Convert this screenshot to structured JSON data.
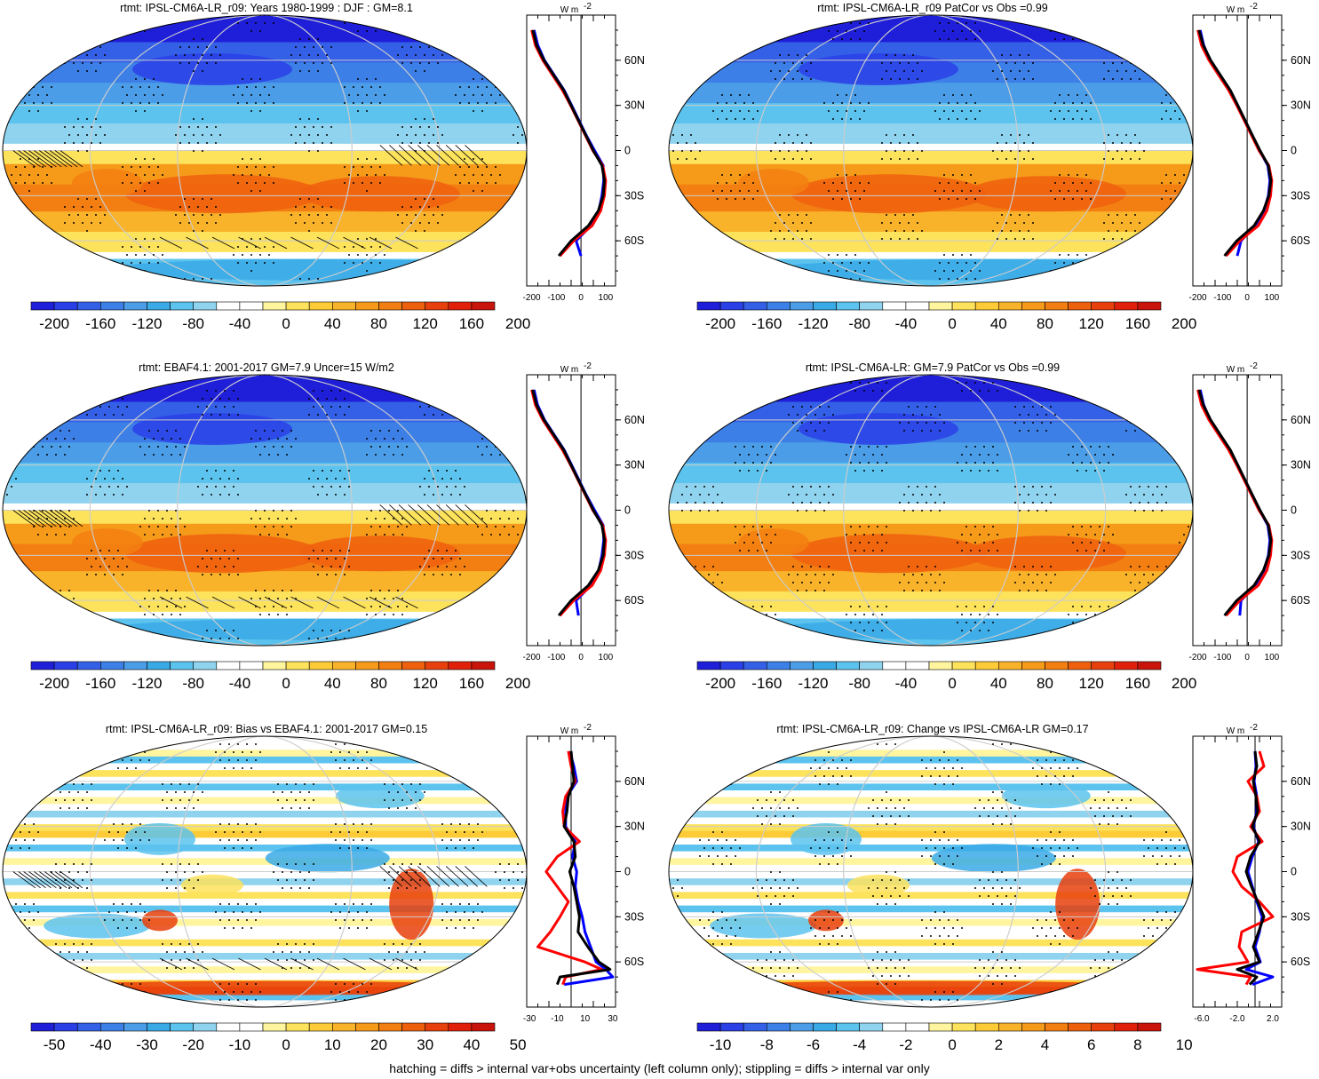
{
  "footnote": "hatching = diffs > internal var+obs uncertainty (left column only); stippling = diffs > internal var only",
  "profile_unit": "W m",
  "profile_unit_exp": "-2",
  "lat_labels": [
    "60N",
    "30N",
    "0",
    "30S",
    "60S"
  ],
  "palette": [
    "#1f1fd9",
    "#2a3fe6",
    "#3460e8",
    "#3c7fe6",
    "#4c9de8",
    "#3aaae6",
    "#5cc3ee",
    "#8fd3ef",
    "#ffffff",
    "#ffffff",
    "#fff59e",
    "#fde25c",
    "#fccb37",
    "#f9b32a",
    "#f69a1a",
    "#f37f12",
    "#ee600e",
    "#e8400c",
    "#e0200a",
    "#c8140a"
  ],
  "colors": {
    "model": "#000000",
    "obs": "#ff0000",
    "other": "#0000ff"
  },
  "chart_data": [
    {
      "type": "heatmap",
      "title": "rtmt: IPSL-CM6A-LR_r09: Years 1980-1999 : DJF : GM=8.1",
      "colorbar_ticks": [
        "-200",
        "-160",
        "-120",
        "-80",
        "-40",
        "0",
        "40",
        "80",
        "120",
        "160",
        "200"
      ],
      "profile_ticks": [
        "-200",
        "-100",
        "0",
        "100"
      ],
      "profile_xlim": [
        -220,
        140
      ],
      "profile_zero": 0,
      "zonal_mean": {
        "lat": [
          80,
          70,
          60,
          50,
          40,
          30,
          20,
          10,
          0,
          -10,
          -20,
          -30,
          -40,
          -50,
          -60,
          -70
        ],
        "model": [
          -195,
          -180,
          -150,
          -110,
          -70,
          -40,
          -10,
          20,
          50,
          85,
          95,
          90,
          70,
          30,
          -40,
          -90
        ],
        "obs": [
          -200,
          -185,
          -155,
          -115,
          -75,
          -42,
          -12,
          18,
          48,
          88,
          100,
          95,
          80,
          45,
          -30,
          -85
        ],
        "other": [
          -190,
          -175,
          -148,
          -108,
          -68,
          -38,
          -8,
          22,
          55,
          90,
          92,
          85,
          72,
          40,
          -20,
          0
        ]
      },
      "hatching": true,
      "stippling": true
    },
    {
      "type": "heatmap",
      "title": "rtmt: IPSL-CM6A-LR_r09 PatCor vs Obs =0.99",
      "colorbar_ticks": [
        "-200",
        "-160",
        "-120",
        "-80",
        "-40",
        "0",
        "40",
        "80",
        "120",
        "160",
        "200"
      ],
      "profile_ticks": [
        "-200",
        "-100",
        "0",
        "100"
      ],
      "profile_xlim": [
        -220,
        140
      ],
      "profile_zero": 0,
      "zonal_mean": {
        "lat": [
          80,
          70,
          60,
          50,
          40,
          30,
          20,
          10,
          0,
          -10,
          -20,
          -30,
          -40,
          -50,
          -60,
          -70
        ],
        "model": [
          -195,
          -178,
          -148,
          -108,
          -68,
          -38,
          -8,
          22,
          52,
          86,
          96,
          88,
          66,
          28,
          -42,
          -92
        ],
        "obs": [
          -200,
          -185,
          -155,
          -115,
          -75,
          -42,
          -12,
          18,
          48,
          88,
          100,
          95,
          80,
          45,
          -30,
          -85
        ],
        "other": [
          -190,
          -176,
          -150,
          -110,
          -70,
          -40,
          -10,
          20,
          50,
          84,
          92,
          86,
          68,
          32,
          -25,
          -40
        ]
      },
      "hatching": false,
      "stippling": true
    },
    {
      "type": "heatmap",
      "title": "rtmt: EBAF4.1: 2001-2017 GM=7.9 Uncer=15 W/m2",
      "colorbar_ticks": [
        "-200",
        "-160",
        "-120",
        "-80",
        "-40",
        "0",
        "40",
        "80",
        "120",
        "160",
        "200"
      ],
      "profile_ticks": [
        "-200",
        "-100",
        "0",
        "100"
      ],
      "profile_xlim": [
        -220,
        140
      ],
      "profile_zero": 0,
      "zonal_mean": {
        "lat": [
          80,
          70,
          60,
          50,
          40,
          30,
          20,
          10,
          0,
          -10,
          -20,
          -30,
          -40,
          -50,
          -60,
          -70
        ],
        "model": [
          -196,
          -180,
          -150,
          -110,
          -70,
          -40,
          -10,
          20,
          50,
          85,
          95,
          90,
          70,
          30,
          -40,
          -90
        ],
        "obs": [
          -200,
          -185,
          -155,
          -115,
          -75,
          -42,
          -12,
          18,
          48,
          88,
          100,
          95,
          80,
          45,
          -30,
          -85
        ],
        "other": [
          -190,
          -176,
          -148,
          -108,
          -68,
          -38,
          -8,
          22,
          55,
          90,
          92,
          85,
          72,
          40,
          -20,
          -10
        ]
      },
      "hatching": true,
      "stippling": true
    },
    {
      "type": "heatmap",
      "title": "rtmt: IPSL-CM6A-LR: GM=7.9 PatCor vs Obs =0.99",
      "colorbar_ticks": [
        "-200",
        "-160",
        "-120",
        "-80",
        "-40",
        "0",
        "40",
        "80",
        "120",
        "160",
        "200"
      ],
      "profile_ticks": [
        "-200",
        "-100",
        "0",
        "100"
      ],
      "profile_xlim": [
        -220,
        140
      ],
      "profile_zero": 0,
      "zonal_mean": {
        "lat": [
          80,
          70,
          60,
          50,
          40,
          30,
          20,
          10,
          0,
          -10,
          -20,
          -30,
          -40,
          -50,
          -60,
          -70
        ],
        "model": [
          -195,
          -178,
          -148,
          -108,
          -68,
          -38,
          -8,
          22,
          52,
          86,
          96,
          88,
          66,
          28,
          -42,
          -92
        ],
        "obs": [
          -200,
          -185,
          -155,
          -115,
          -75,
          -42,
          -12,
          18,
          48,
          88,
          100,
          95,
          80,
          45,
          -30,
          -85
        ],
        "other": [
          -190,
          -176,
          -150,
          -110,
          -70,
          -40,
          -10,
          20,
          50,
          84,
          92,
          86,
          68,
          32,
          -25,
          -30
        ]
      },
      "hatching": false,
      "stippling": true
    },
    {
      "type": "heatmap",
      "title": "rtmt: IPSL-CM6A-LR_r09: Bias vs EBAF4.1: 2001-2017 GM=0.15",
      "colorbar_ticks": [
        "-50",
        "-40",
        "-30",
        "-20",
        "-10",
        "0",
        "10",
        "20",
        "30",
        "40",
        "50"
      ],
      "profile_ticks": [
        "-30",
        "-10",
        "10",
        "30"
      ],
      "profile_xlim": [
        -32,
        32
      ],
      "profile_zero": 0,
      "zonal_mean": {
        "lat": [
          80,
          70,
          60,
          50,
          40,
          30,
          20,
          10,
          0,
          -10,
          -20,
          -30,
          -40,
          -50,
          -60,
          -65,
          -70,
          -75
        ],
        "model": [
          0,
          1,
          2,
          -2,
          -3,
          -5,
          2,
          3,
          -1,
          2,
          4,
          6,
          5,
          12,
          20,
          28,
          -8,
          -10
        ],
        "obs": [
          -2,
          0,
          3,
          -4,
          -6,
          -5,
          6,
          -10,
          -18,
          -10,
          -2,
          -8,
          -15,
          -24,
          10,
          22,
          -4,
          -6
        ],
        "other": [
          -1,
          2,
          4,
          -3,
          -4,
          -4,
          3,
          1,
          4,
          3,
          5,
          8,
          10,
          14,
          18,
          25,
          30,
          -5
        ]
      },
      "hatching": true,
      "stippling": true
    },
    {
      "type": "heatmap",
      "title": "rtmt: IPSL-CM6A-LR_r09: Change vs IPSL-CM6A-LR GM=0.17",
      "colorbar_ticks": [
        "-10",
        "-8",
        "-6",
        "-4",
        "-2",
        "0",
        "2",
        "4",
        "6",
        "8",
        "10"
      ],
      "profile_ticks": [
        "-6.0",
        "-2.0",
        "2.0"
      ],
      "profile_xlim": [
        -7,
        3
      ],
      "profile_zero": 0,
      "zonal_mean": {
        "lat": [
          80,
          70,
          60,
          50,
          40,
          30,
          20,
          10,
          0,
          -10,
          -20,
          -30,
          -40,
          -50,
          -60,
          -65,
          -70,
          -75
        ],
        "model": [
          0,
          0.2,
          -0.2,
          0.1,
          0.3,
          -0.3,
          0.5,
          -0.5,
          -1.0,
          -0.4,
          0.3,
          1.0,
          0.4,
          -0.2,
          0.5,
          -2.0,
          0.2,
          -0.6
        ],
        "obs": [
          0.5,
          1.0,
          -0.8,
          0.2,
          0.5,
          -0.5,
          0.8,
          -2.0,
          -2.5,
          -1.5,
          0.5,
          2.0,
          -1.5,
          -1.8,
          -0.8,
          -6.5,
          -0.5,
          -1.0
        ],
        "other": [
          0,
          0.1,
          -0.1,
          0.2,
          0.2,
          -0.2,
          0.4,
          -0.3,
          -0.8,
          -0.3,
          0.2,
          0.8,
          0.5,
          0.0,
          0.6,
          -1.0,
          2.0,
          -0.3
        ]
      },
      "hatching": false,
      "stippling": true
    }
  ]
}
